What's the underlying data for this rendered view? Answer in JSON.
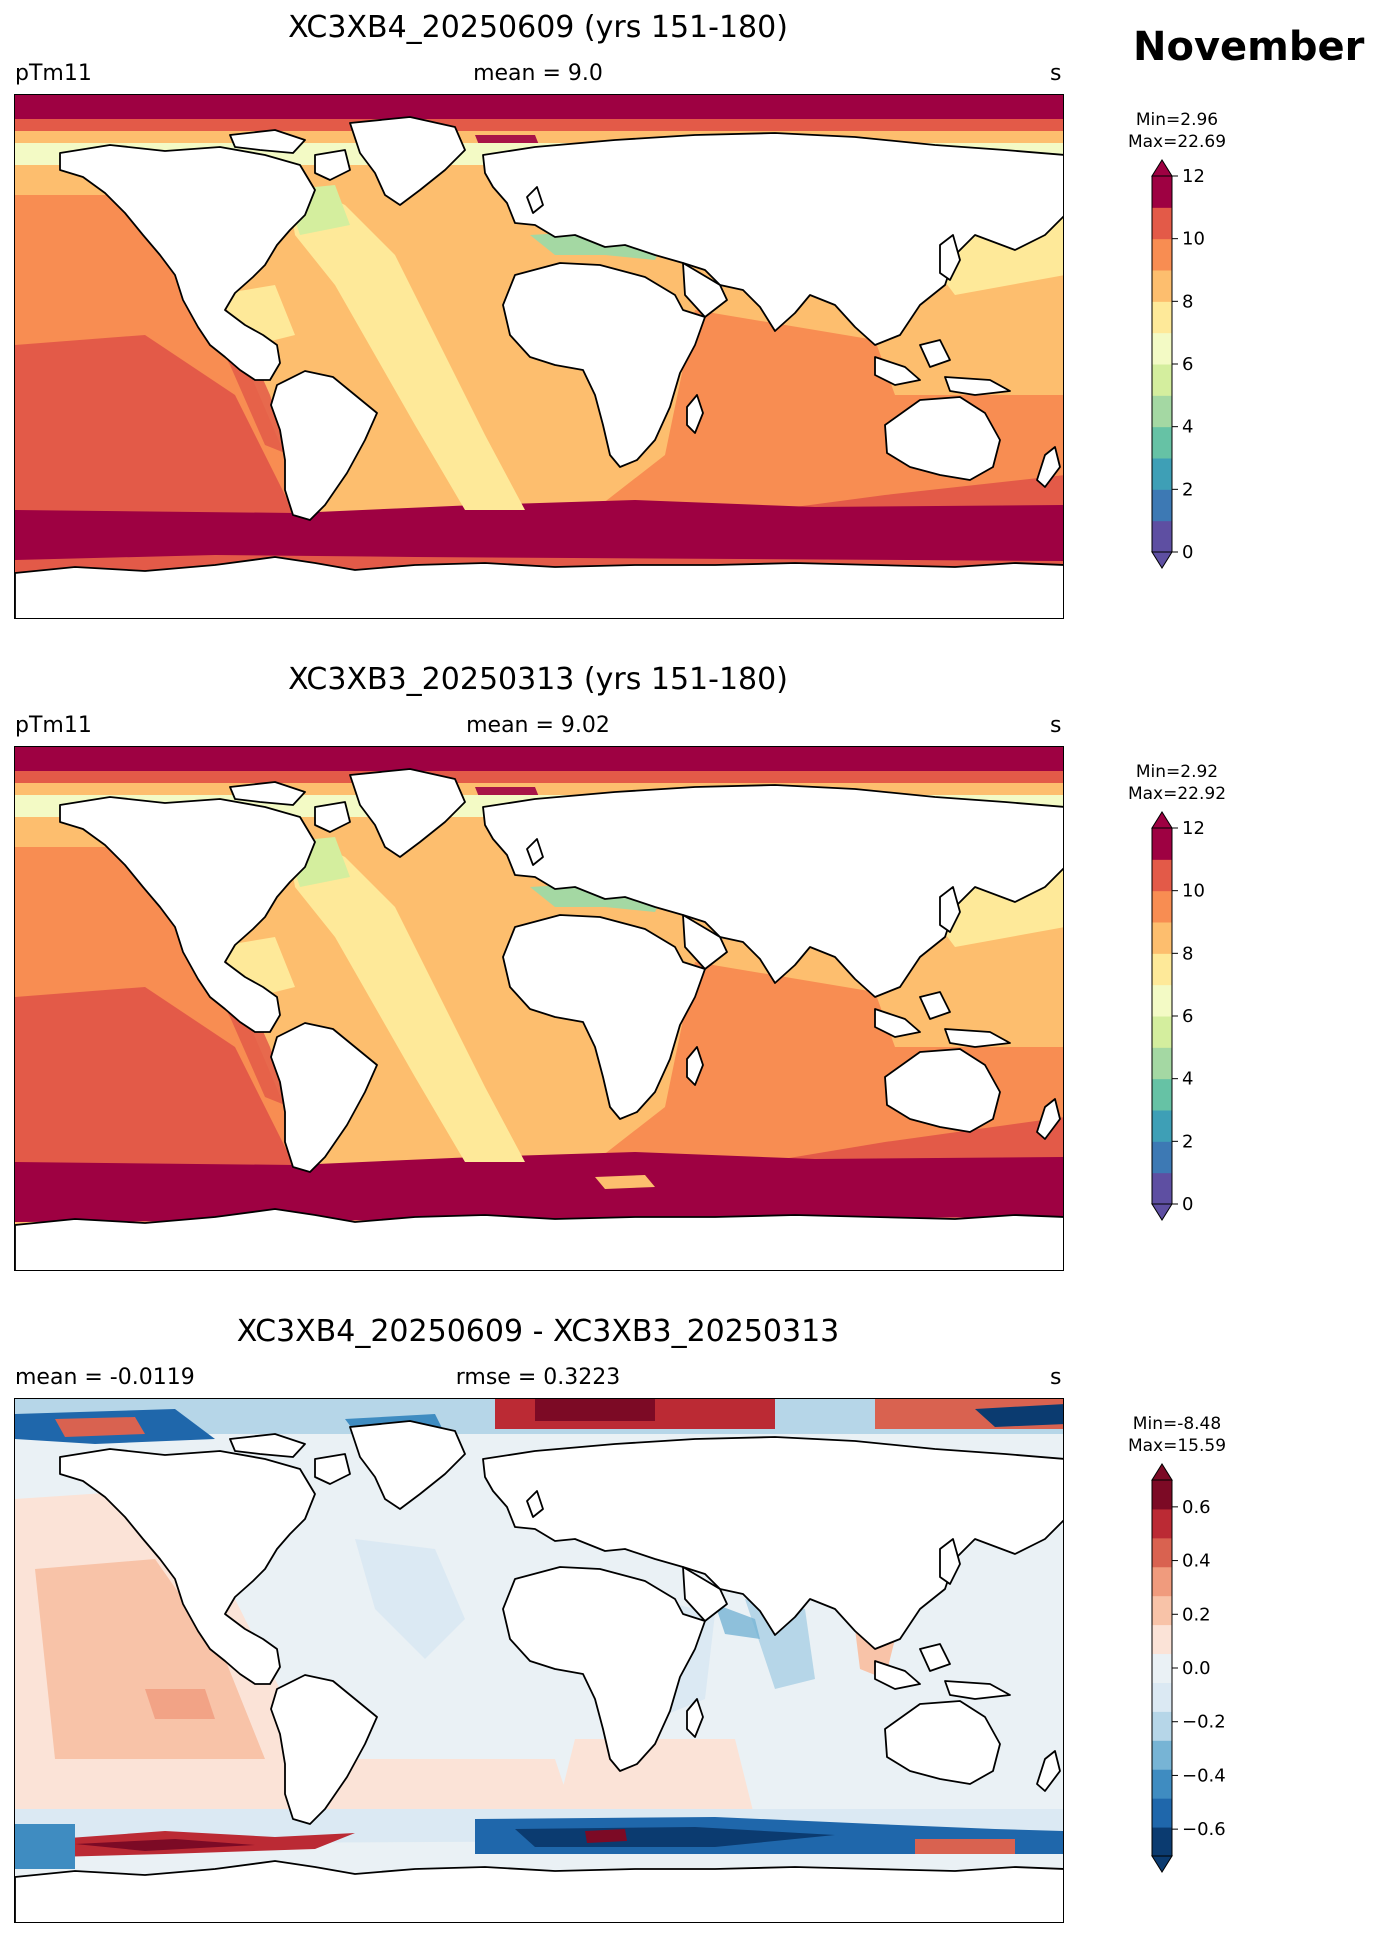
{
  "header": {
    "month": "November"
  },
  "colors": {
    "spectral": [
      "#5e4fa2",
      "#3d79b4",
      "#3e9fb6",
      "#66c2a5",
      "#a4d8a3",
      "#d4ee9e",
      "#f3fac5",
      "#fee999",
      "#fdbe6e",
      "#f88d52",
      "#e35a48",
      "#9e0142"
    ],
    "diverging": [
      "#0b3b70",
      "#1f67ab",
      "#3f8cc1",
      "#77b4d5",
      "#b6d6e8",
      "#dbe9f3",
      "#eaf1f5",
      "#fbe3d7",
      "#f8c3a8",
      "#f09b7d",
      "#d96250",
      "#bb2a34",
      "#7c0a25"
    ],
    "land": "#ffffff",
    "coast": "#000000"
  },
  "panels": [
    {
      "title": "XC3XB4_20250609 (yrs 151-180)",
      "left_label": "pTm11",
      "center_label": "mean = 9.0",
      "right_label": "s",
      "min_text": "Min=2.96",
      "max_text": "Max=22.69",
      "colorbar": {
        "kind": "spectral",
        "range": [
          0,
          12
        ],
        "ticks": [
          "0",
          "2",
          "4",
          "6",
          "8",
          "10",
          "12"
        ]
      }
    },
    {
      "title": "XC3XB3_20250313 (yrs 151-180)",
      "left_label": "pTm11",
      "center_label": "mean = 9.02",
      "right_label": "s",
      "min_text": "Min=2.92",
      "max_text": "Max=22.92",
      "colorbar": {
        "kind": "spectral",
        "range": [
          0,
          12
        ],
        "ticks": [
          "0",
          "2",
          "4",
          "6",
          "8",
          "10",
          "12"
        ]
      }
    },
    {
      "title": "XC3XB4_20250609 - XC3XB3_20250313",
      "left_label": "mean = -0.0119",
      "center_label": "rmse = 0.3223",
      "right_label": "s",
      "min_text": "Min=-8.48",
      "max_text": "Max=15.59",
      "colorbar": {
        "kind": "diverging",
        "range": [
          -0.7,
          0.7
        ],
        "ticks": [
          "−0.6",
          "−0.4",
          "−0.2",
          "0.0",
          "0.2",
          "0.4",
          "0.6"
        ]
      }
    }
  ]
}
